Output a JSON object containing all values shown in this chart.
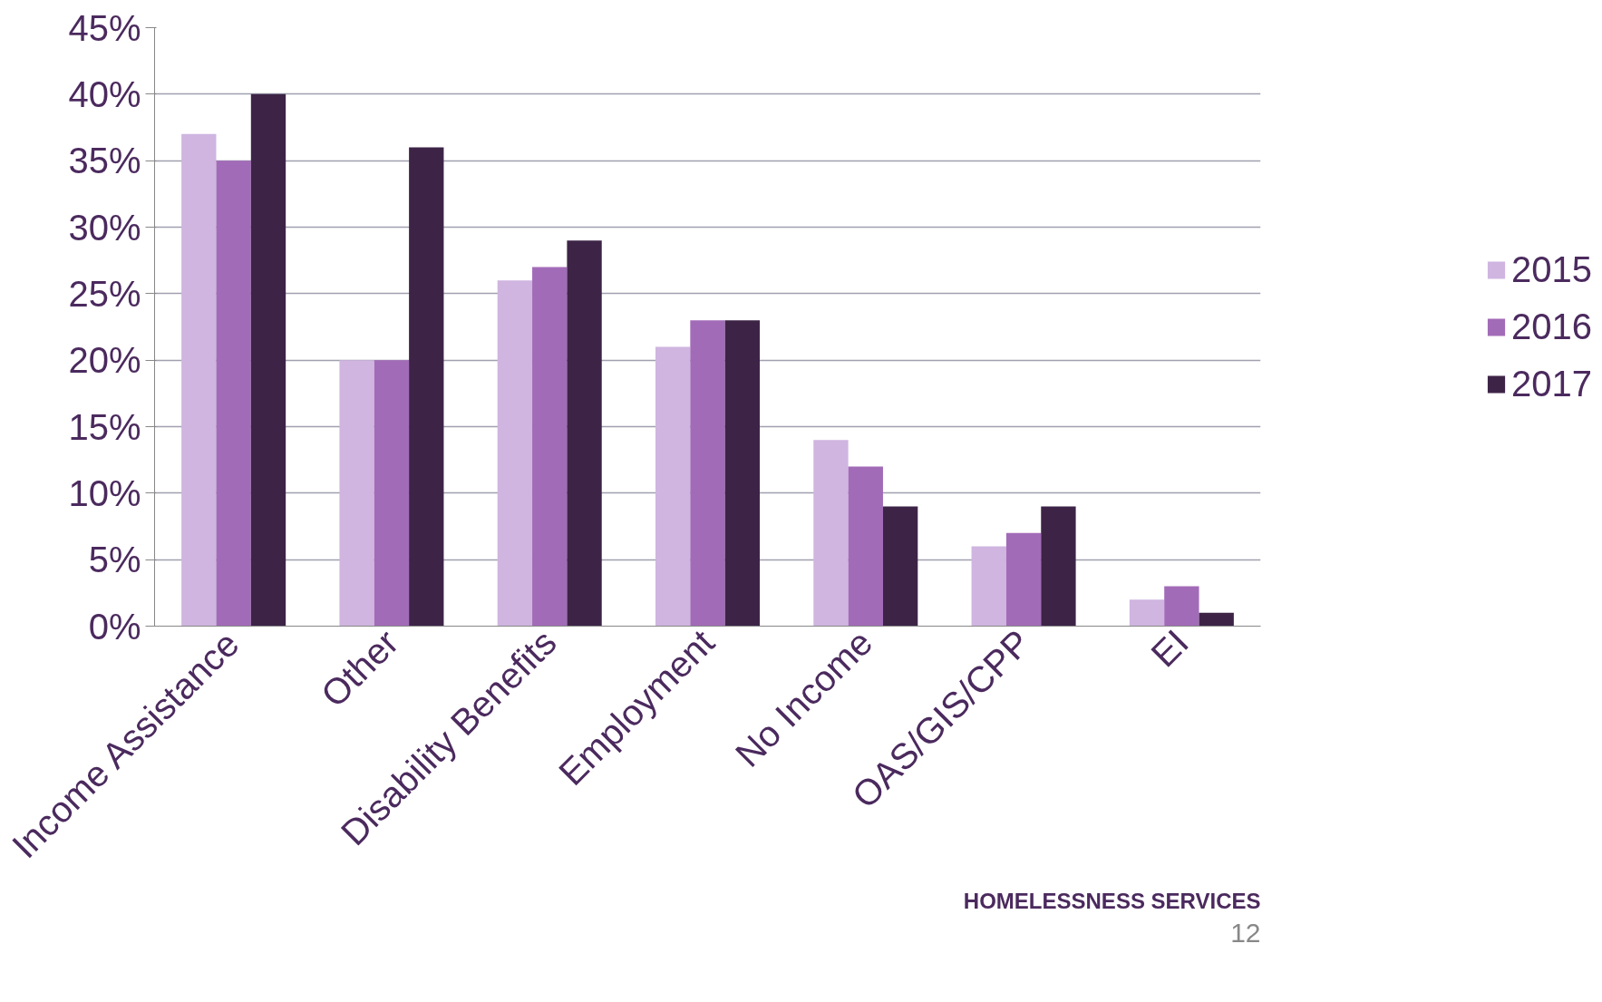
{
  "chart_data": {
    "type": "bar",
    "categories": [
      "Income Assistance",
      "Other",
      "Disability Benefits",
      "Employment",
      "No Income",
      "OAS/GIS/CPP",
      "EI"
    ],
    "series": [
      {
        "name": "2015",
        "color": "#cfb5e0",
        "values": [
          37,
          20,
          26,
          21,
          14,
          6,
          2
        ]
      },
      {
        "name": "2016",
        "color": "#a26bb8",
        "values": [
          35,
          20,
          27,
          23,
          12,
          7,
          3
        ]
      },
      {
        "name": "2017",
        "color": "#3d2447",
        "values": [
          40,
          36,
          29,
          23,
          9,
          9,
          1
        ]
      }
    ],
    "ylim": [
      0,
      45
    ],
    "yticks": [
      {
        "value": 0,
        "label": "0%"
      },
      {
        "value": 5,
        "label": "5%"
      },
      {
        "value": 10,
        "label": "10%"
      },
      {
        "value": 15,
        "label": "15%"
      },
      {
        "value": 20,
        "label": "20%"
      },
      {
        "value": 25,
        "label": "25%"
      },
      {
        "value": 30,
        "label": "30%"
      },
      {
        "value": 35,
        "label": "35%"
      },
      {
        "value": 40,
        "label": "40%"
      },
      {
        "value": 45,
        "label": "45%"
      }
    ],
    "grid": "y",
    "legend": "right",
    "annotations": [
      "HOMELESSNESS SERVICES",
      "12"
    ]
  }
}
